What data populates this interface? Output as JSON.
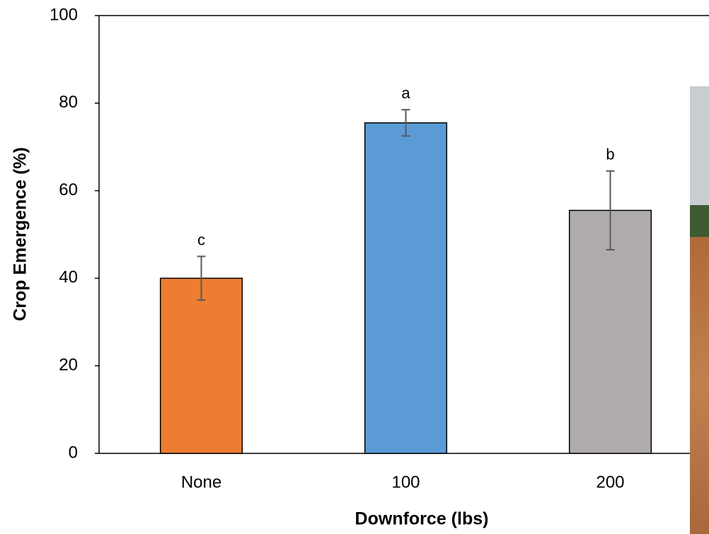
{
  "chart_data": {
    "type": "bar",
    "x_label": "Downforce (lbs)",
    "y_label": "Crop Emergence (%)",
    "categories": [
      "None",
      "100",
      "200"
    ],
    "values": [
      40,
      75.5,
      55.5
    ],
    "errors": [
      5,
      3,
      9
    ],
    "annotations": [
      "c",
      "a",
      "b"
    ],
    "colors": [
      "#ed7d31",
      "#5b9bd5",
      "#afabab"
    ],
    "ylim": [
      0,
      100
    ],
    "yticks": [
      0,
      20,
      40,
      60,
      80,
      100
    ]
  }
}
